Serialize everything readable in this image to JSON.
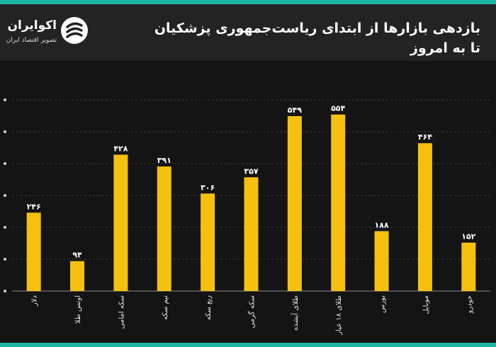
{
  "header": {
    "title_line1": "بازدهی بازارها از ابتدای ریاست‌جمهوری پزشکیان",
    "title_line2": "تا  به امروز"
  },
  "logo": {
    "name": "اکوایران",
    "tagline": "تصویر اقتصاد ایران",
    "icon": "ecoiran-logo-icon"
  },
  "colors": {
    "bar": "#f5c10e",
    "background": "#141414",
    "header": "#232323",
    "accent": "#1fb5a5",
    "text": "#ffffff"
  },
  "chart_data": {
    "type": "bar",
    "title": "بازدهی بازارها از ابتدای ریاست‌جمهوری پزشکیان تا به امروز",
    "categories": [
      "دلار",
      "اونس طلا",
      "سکه امامی",
      "نیم سکه",
      "ربع سکه",
      "سکه گرمی",
      "طلای آبشده",
      "طلای ۱۸ عیار",
      "بورس",
      "موبایل",
      "خودرو"
    ],
    "values": [
      246,
      94,
      428,
      391,
      306,
      357,
      549,
      554,
      188,
      464,
      152
    ],
    "value_labels": [
      "۲۴۶",
      "۹۴",
      "۴۲۸",
      "۳۹۱",
      "۳۰۶",
      "۳۵۷",
      "۵۴۹",
      "۵۵۴",
      "۱۸۸",
      "۴۶۴",
      "۱۵۲"
    ],
    "ylim": [
      0,
      600
    ],
    "yticks": [
      0,
      100,
      200,
      300,
      400,
      500,
      600
    ],
    "grid": true,
    "legend": "none"
  }
}
